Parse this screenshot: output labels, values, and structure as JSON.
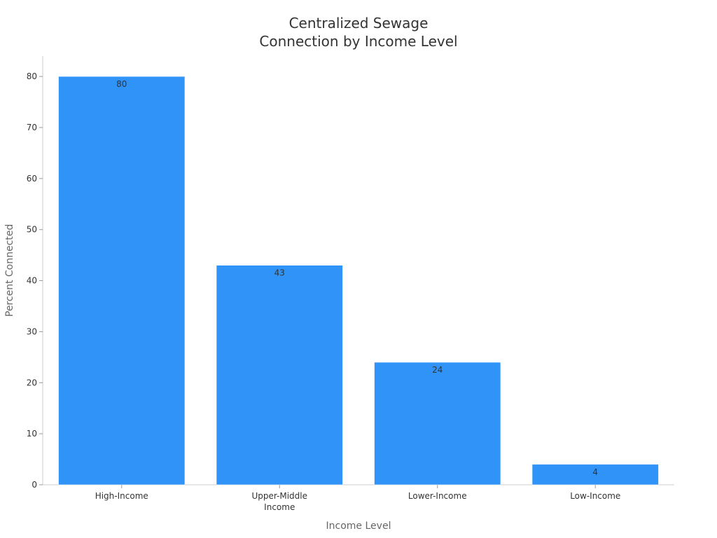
{
  "chart_data": {
    "type": "bar",
    "title": [
      "Centralized Sewage",
      "Connection by Income Level"
    ],
    "xlabel": "Income Level",
    "ylabel": "Percent Connected",
    "categories": [
      [
        "High-Income"
      ],
      [
        "Upper-Middle",
        "Income"
      ],
      [
        "Lower-Income"
      ],
      [
        "Low-Income"
      ]
    ],
    "values": [
      80,
      43,
      24,
      4
    ],
    "data_labels": [
      "80",
      "43",
      "24",
      "4"
    ],
    "ylim": [
      0,
      84
    ],
    "yticks": [
      0,
      10,
      20,
      30,
      40,
      50,
      60,
      70,
      80
    ],
    "grid": false,
    "legend": "none",
    "bar_color": "#3093F8"
  }
}
